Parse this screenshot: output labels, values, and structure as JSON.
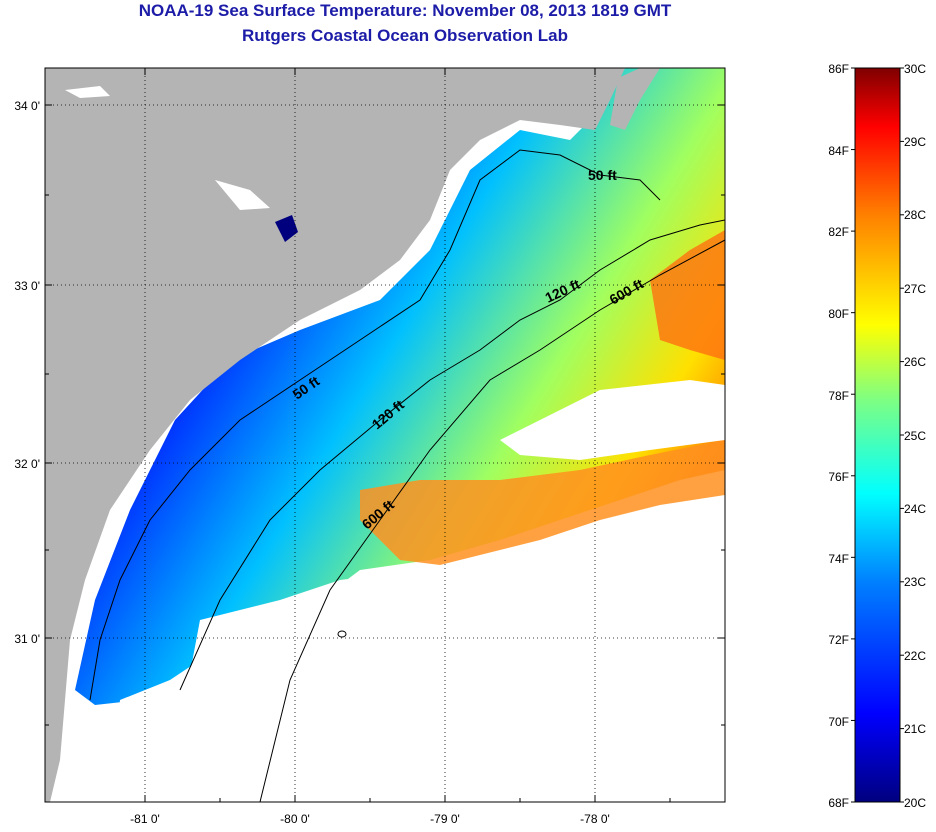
{
  "header": {
    "title": "NOAA-19 Sea Surface Temperature:  November 08, 2013 1819 GMT",
    "subtitle": "Rutgers Coastal Ocean Observation Lab"
  },
  "map": {
    "lat_labels": [
      "34 0'",
      "33 0'",
      "32 0'",
      "31 0'"
    ],
    "lon_labels": [
      "-81 0'",
      "-80 0'",
      "-79 0'",
      "-78 0'"
    ],
    "contour_labels": {
      "c50_north": "50 ft",
      "c50_south": "50 ft",
      "c120_north": "120 ft",
      "c120_south": "120 ft",
      "c600_north": "600 ft",
      "c600_south": "600 ft"
    },
    "colors": {
      "land": "#b4b4b4",
      "cloud": "#ffffff"
    }
  },
  "colorbar": {
    "fahrenheit_labels": [
      "86F",
      "84F",
      "82F",
      "80F",
      "78F",
      "76F",
      "74F",
      "72F",
      "70F",
      "68F"
    ],
    "celsius_labels": [
      "30C",
      "29C",
      "28C",
      "27C",
      "26C",
      "25C",
      "24C",
      "23C",
      "22C",
      "21C",
      "20C"
    ],
    "gradient": [
      "#00007f",
      "#0000ff",
      "#0080ff",
      "#00ffff",
      "#80ff80",
      "#ffff00",
      "#ff8000",
      "#ff0000",
      "#7f0000"
    ]
  }
}
